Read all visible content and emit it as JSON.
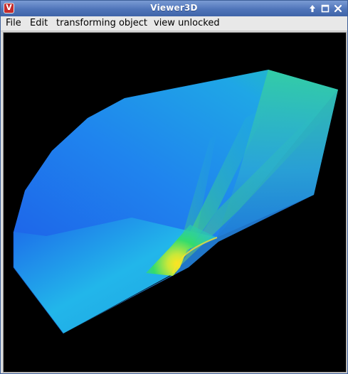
{
  "window": {
    "title": "Viewer3D",
    "app_icon_letter": "V"
  },
  "menu": {
    "items": [
      "File",
      "Edit",
      "transforming object",
      "view unlocked"
    ]
  },
  "titlebar_buttons": [
    "up-arrow-icon",
    "maximize-icon",
    "close-icon"
  ],
  "colors": {
    "title_bar": "#4f74b9",
    "canvas_background": "#000000",
    "surface_low": "#1f64ea",
    "surface_mid": "#21b6ea",
    "surface_high": "#2ee07a",
    "surface_peak": "#f0e020"
  }
}
